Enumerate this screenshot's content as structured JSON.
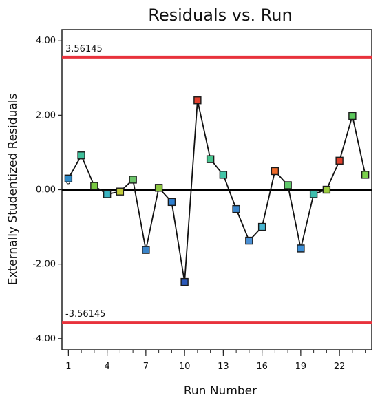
{
  "chart_data": {
    "type": "line",
    "title": "Residuals vs. Run",
    "xlabel": "Run Number",
    "ylabel": "Externally Studentized Residuals",
    "xlim": [
      0.5,
      24.5
    ],
    "ylim": [
      -4.3,
      4.3
    ],
    "x_ticks": [
      1,
      4,
      7,
      10,
      13,
      16,
      19,
      22
    ],
    "x_minor_ticks": [
      1,
      2,
      3,
      4,
      5,
      6,
      7,
      8,
      9,
      10,
      11,
      12,
      13,
      14,
      15,
      16,
      17,
      18,
      19,
      20,
      21,
      22,
      23,
      24
    ],
    "y_ticks": [
      4,
      2,
      0,
      -2,
      -4
    ],
    "y_tick_labels": [
      "4.00",
      "2.00",
      "0.00",
      "-2.00",
      "-4.00"
    ],
    "grid": false,
    "reference_lines": [
      {
        "y": 3.56145,
        "label": "3.56145",
        "color": "#e8323c"
      },
      {
        "y": 0,
        "label": "0",
        "color": "#000000"
      },
      {
        "y": -3.56145,
        "label": "-3.56145",
        "color": "#e8323c"
      }
    ],
    "series": [
      {
        "line_color": "#111111",
        "points": [
          {
            "x": 1,
            "y": 0.3,
            "color": "#2e8bc9"
          },
          {
            "x": 2,
            "y": 0.92,
            "color": "#3fbf9a"
          },
          {
            "x": 3,
            "y": 0.1,
            "color": "#79c943"
          },
          {
            "x": 4,
            "y": -0.12,
            "color": "#3bb5c2"
          },
          {
            "x": 5,
            "y": -0.05,
            "color": "#c2cc3a"
          },
          {
            "x": 6,
            "y": 0.27,
            "color": "#6cc46a"
          },
          {
            "x": 7,
            "y": -1.62,
            "color": "#3a84c9"
          },
          {
            "x": 8,
            "y": 0.05,
            "color": "#8cc63f"
          },
          {
            "x": 9,
            "y": -0.33,
            "color": "#2f7fcf"
          },
          {
            "x": 10,
            "y": -2.48,
            "color": "#2b58b8"
          },
          {
            "x": 11,
            "y": 2.4,
            "color": "#e3412f"
          },
          {
            "x": 12,
            "y": 0.82,
            "color": "#47c48f"
          },
          {
            "x": 13,
            "y": 0.4,
            "color": "#42c5a8"
          },
          {
            "x": 14,
            "y": -0.52,
            "color": "#3a86cc"
          },
          {
            "x": 15,
            "y": -1.37,
            "color": "#4a8fd4"
          },
          {
            "x": 16,
            "y": -1.0,
            "color": "#46b4cf"
          },
          {
            "x": 17,
            "y": 0.5,
            "color": "#f06b2a"
          },
          {
            "x": 18,
            "y": 0.12,
            "color": "#5fc96a"
          },
          {
            "x": 19,
            "y": -1.58,
            "color": "#3d8fd6"
          },
          {
            "x": 20,
            "y": -0.12,
            "color": "#3fbfae"
          },
          {
            "x": 21,
            "y": 0.0,
            "color": "#9acb3e"
          },
          {
            "x": 22,
            "y": 0.78,
            "color": "#e0402c"
          },
          {
            "x": 23,
            "y": 1.98,
            "color": "#5cc85c"
          },
          {
            "x": 24,
            "y": 0.4,
            "color": "#7bd14c"
          }
        ]
      }
    ]
  }
}
